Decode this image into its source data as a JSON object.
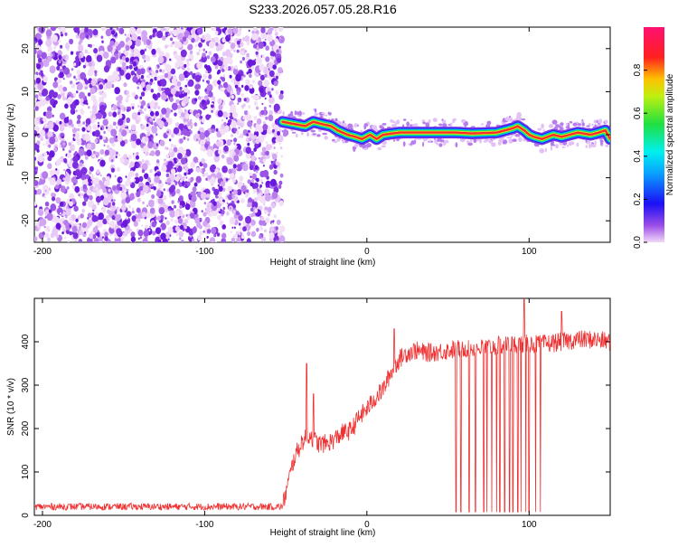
{
  "figure": {
    "title": "S233.2026.057.05.28.R16"
  },
  "chart_data": [
    {
      "type": "heatmap",
      "xlabel": "Height of straight line (km)",
      "ylabel": "Frequency (Hz)",
      "xlim": [
        -205,
        150
      ],
      "ylim": [
        -25,
        25
      ],
      "x_ticks": [
        -200,
        -100,
        0,
        100
      ],
      "y_ticks": [
        -20,
        -10,
        0,
        10,
        20
      ],
      "noise_region_x": [
        -205,
        -52
      ],
      "signal_trace": {
        "x": [
          -52,
          -45,
          -38,
          -33,
          -28,
          -22,
          -18,
          -12,
          -7,
          -3,
          2,
          6,
          10,
          20,
          40,
          55,
          65,
          80,
          90,
          93,
          97,
          100,
          103,
          108,
          115,
          120,
          130,
          138,
          143,
          147,
          150
        ],
        "freq_hz": [
          3,
          2.5,
          2,
          3,
          2.5,
          2,
          1,
          0,
          -0.5,
          -1,
          0,
          -1,
          0,
          0.5,
          0.5,
          0.5,
          0.3,
          0.5,
          1.5,
          2,
          1,
          0,
          -0.5,
          -1,
          0,
          -0.5,
          0.5,
          0,
          0.5,
          1,
          -1
        ]
      },
      "colorbar": {
        "label": "Normalized spectral amplitude",
        "range": [
          0,
          1
        ],
        "ticks": [
          0.0,
          0.2,
          0.4,
          0.6,
          0.8
        ],
        "tick_labels": [
          "0.0",
          "0.2",
          "0.4",
          "0.6",
          "0.8"
        ]
      }
    },
    {
      "type": "line",
      "xlabel": "Height of straight line (km)",
      "ylabel": "SNR (10 * v/v)",
      "xlim": [
        -205,
        150
      ],
      "ylim": [
        0,
        500
      ],
      "x_ticks": [
        -200,
        -100,
        0,
        100
      ],
      "y_ticks": [
        0,
        100,
        200,
        300,
        400
      ],
      "color": "#f03030",
      "baseline_level": 20,
      "trend": {
        "x": [
          -205,
          -52,
          -45,
          -40,
          -35,
          -30,
          -25,
          -20,
          -15,
          -10,
          -5,
          0,
          5,
          10,
          15,
          20,
          25,
          30,
          35,
          40,
          50,
          60,
          70,
          80,
          90,
          100,
          110,
          120,
          130,
          140,
          150
        ],
        "y": [
          20,
          20,
          130,
          170,
          185,
          165,
          165,
          175,
          190,
          195,
          225,
          245,
          270,
          290,
          330,
          360,
          375,
          380,
          375,
          375,
          380,
          385,
          385,
          390,
          395,
          395,
          395,
          400,
          405,
          405,
          400
        ]
      },
      "spikes": [
        {
          "x": -37,
          "y": 350
        },
        {
          "x": -33,
          "y": 280
        },
        {
          "x": 17,
          "y": 430
        },
        {
          "x": 97,
          "y": 500
        },
        {
          "x": 120,
          "y": 470
        }
      ],
      "dropouts_x": [
        55,
        58,
        63,
        67,
        72,
        74,
        77,
        80,
        82,
        85,
        88,
        90,
        93,
        95,
        98,
        100,
        104,
        107
      ]
    }
  ]
}
